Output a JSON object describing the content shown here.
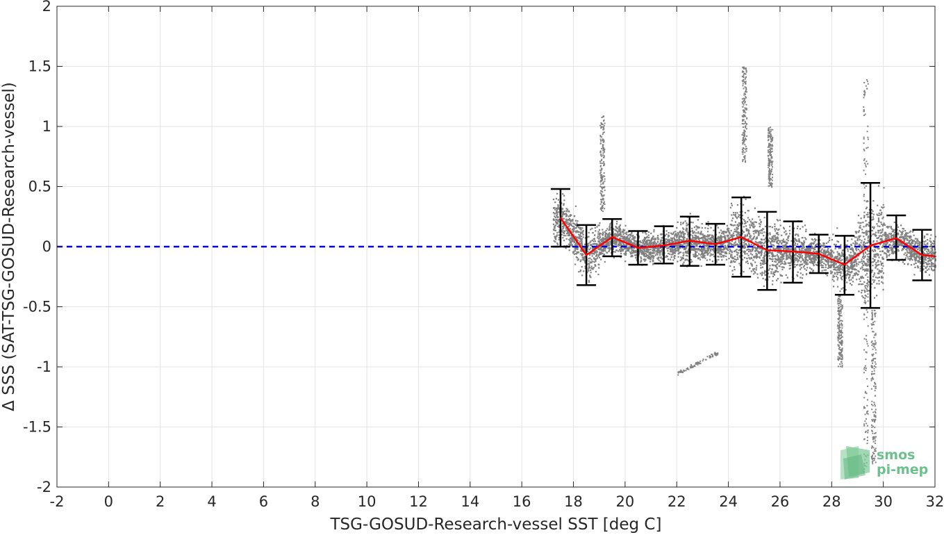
{
  "chart_data": {
    "type": "scatter",
    "xlabel": "TSG-GOSUD-Research-vessel SST [deg C]",
    "ylabel": "Δ SSS (SAT-TSG-GOSUD-Research-vessel)",
    "xlim": [
      -2,
      32
    ],
    "ylim": [
      -2,
      2
    ],
    "x_ticks": [
      -2,
      0,
      2,
      4,
      6,
      8,
      10,
      12,
      14,
      16,
      18,
      20,
      22,
      24,
      26,
      28,
      30,
      32
    ],
    "y_ticks": [
      -2,
      -1.5,
      -1,
      -0.5,
      0,
      0.5,
      1,
      1.5,
      2
    ],
    "x_tick_labels": [
      "-2",
      "0",
      "2",
      "4",
      "6",
      "8",
      "10",
      "12",
      "14",
      "16",
      "18",
      "20",
      "22",
      "24",
      "26",
      "28",
      "30",
      "32"
    ],
    "y_tick_labels": [
      "-2",
      "-1.5",
      "-1",
      "-0.5",
      "0",
      "0.5",
      "1",
      "1.5",
      "2"
    ],
    "grid": true,
    "zero_line": {
      "y": 0,
      "style": "dashed",
      "color": "#0000d0"
    },
    "scatter_color": "#808080",
    "mean_line_color": "#ff0000",
    "errorbar_color": "#000000",
    "binned_stats": {
      "x": [
        17.5,
        18.5,
        19.5,
        20.5,
        21.5,
        22.5,
        23.5,
        24.5,
        25.5,
        26.5,
        27.5,
        28.5,
        29.5,
        30.5,
        31.5,
        32.0
      ],
      "mean": [
        0.24,
        -0.07,
        0.08,
        -0.01,
        0.01,
        0.05,
        0.02,
        0.08,
        -0.03,
        -0.04,
        -0.06,
        -0.15,
        0.01,
        0.07,
        -0.07,
        -0.08
      ],
      "upper": [
        0.48,
        0.18,
        0.23,
        0.13,
        0.17,
        0.25,
        0.19,
        0.41,
        0.29,
        0.21,
        0.1,
        0.09,
        0.53,
        0.26,
        0.14,
        null
      ],
      "lower": [
        0.0,
        -0.32,
        -0.08,
        -0.15,
        -0.14,
        -0.16,
        -0.15,
        -0.25,
        -0.36,
        -0.3,
        -0.22,
        -0.4,
        -0.51,
        -0.11,
        -0.28,
        null
      ]
    }
  },
  "logo": {
    "line1": "smos",
    "line2": "pi-mep",
    "color": "#6cc08b"
  }
}
